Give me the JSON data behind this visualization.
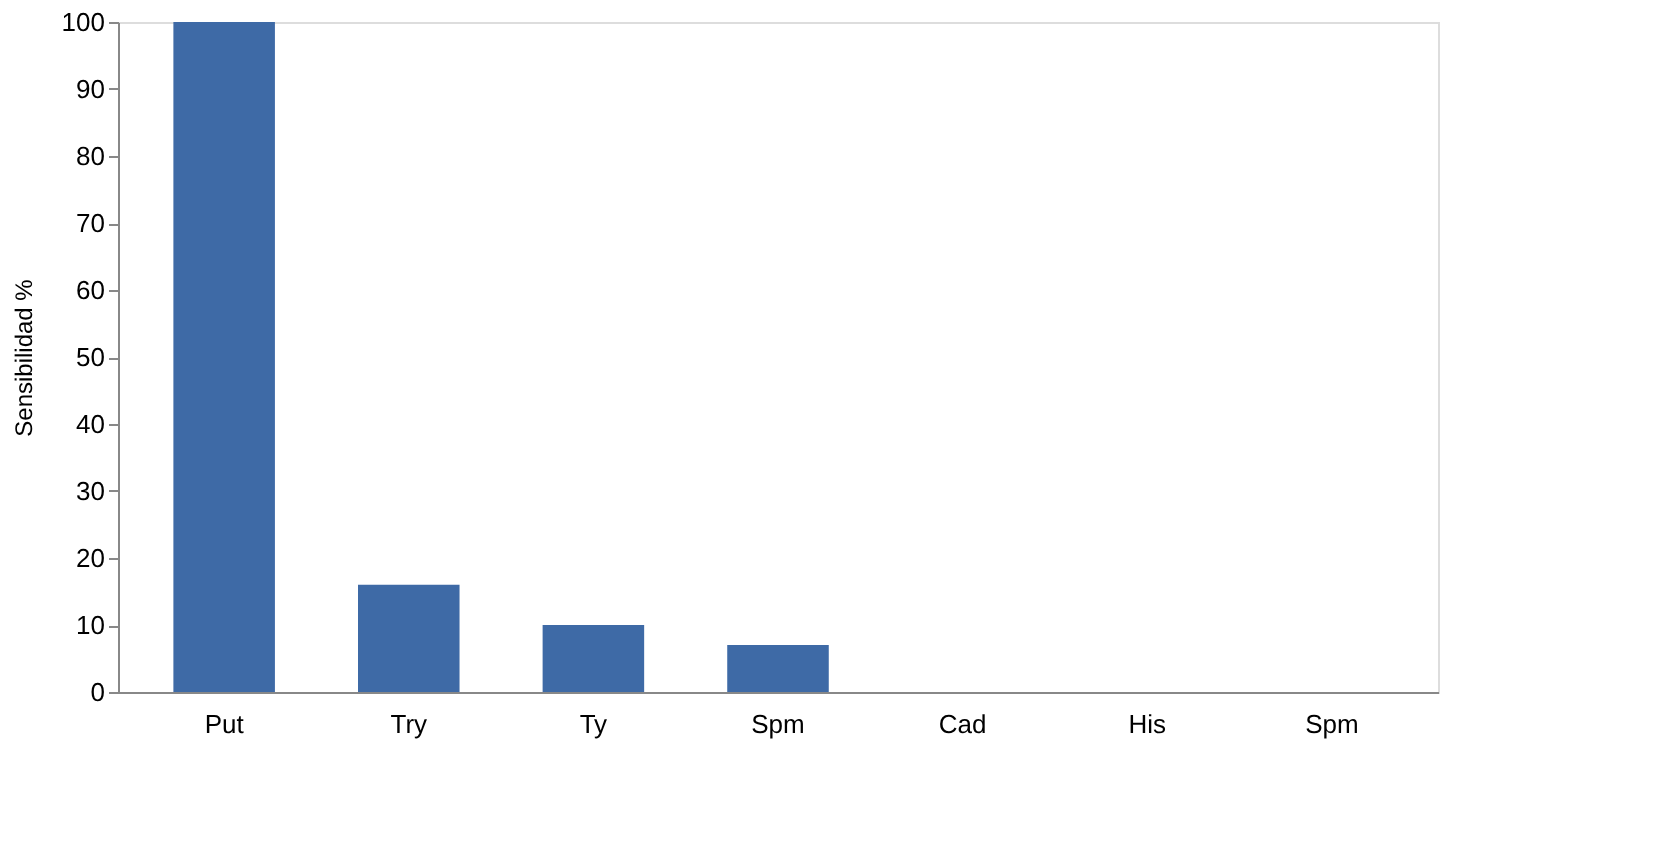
{
  "chart_data": {
    "type": "bar",
    "ylabel": "Sensibilidad %",
    "categories": [
      "Put",
      "Try",
      "Ty",
      "Spm",
      "Cad",
      "His",
      "Spm"
    ],
    "values": [
      100,
      16,
      10,
      7,
      0,
      0,
      0
    ],
    "color": "#3e6aa6",
    "ylim": [
      0,
      100
    ],
    "yticks": [
      0,
      10,
      20,
      30,
      40,
      50,
      60,
      70,
      80,
      90,
      100
    ],
    "grid": false
  }
}
